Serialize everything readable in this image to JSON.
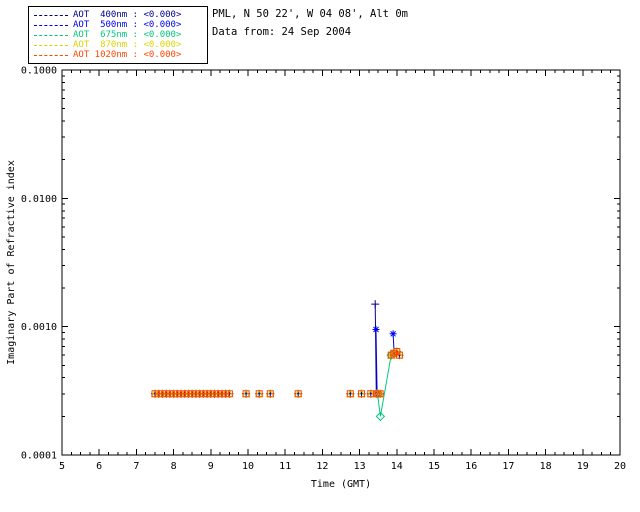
{
  "header": {
    "site": "PML, N 50 22', W 04 08', Alt 0m",
    "date": "Data from: 24 Sep 2004"
  },
  "legend": {
    "entries": [
      {
        "label": "AOT  400nm : <0.000>",
        "color": "#00008B"
      },
      {
        "label": "AOT  500nm : <0.000>",
        "color": "#0000EE"
      },
      {
        "label": "AOT  675nm : <0.000>",
        "color": "#00C87D"
      },
      {
        "label": "AOT  870nm : <0.000>",
        "color": "#DCD400"
      },
      {
        "label": "AOT 1020nm : <0.000>",
        "color": "#FF4500"
      }
    ]
  },
  "chart_data": {
    "type": "line",
    "title": "",
    "xlabel": "Time (GMT)",
    "ylabel": "Imaginary Part of Refractive index",
    "xlim": [
      5,
      20
    ],
    "ylim": [
      0.0001,
      0.1
    ],
    "yscale": "log",
    "grid": false,
    "legend_position": "top-left",
    "xticks": [
      5,
      6,
      7,
      8,
      9,
      10,
      11,
      12,
      13,
      14,
      15,
      16,
      17,
      18,
      19,
      20
    ],
    "yticks": [
      0.0001,
      0.001,
      0.01,
      0.1
    ],
    "ytick_labels": [
      "0.0001",
      "0.0010",
      "0.0100",
      "0.1000"
    ],
    "baseline": {
      "y": 0.0003,
      "x": [
        7.5,
        7.6,
        7.7,
        7.8,
        7.9,
        8.0,
        8.1,
        8.2,
        8.3,
        8.4,
        8.5,
        8.6,
        8.7,
        8.8,
        8.9,
        9.0,
        9.1,
        9.2,
        9.3,
        9.4,
        9.5,
        9.95,
        10.3,
        10.6,
        11.35,
        12.75,
        13.05,
        13.3,
        13.45,
        13.5,
        13.55
      ]
    },
    "cluster2": {
      "x": [
        13.85,
        13.92,
        14.0,
        14.07
      ],
      "y": [
        0.0006,
        0.00062,
        0.00064,
        0.0006
      ]
    },
    "series": [
      {
        "name": "AOT 400nm",
        "color": "#00008B",
        "marker": "plus",
        "baseline": true,
        "cluster2": true,
        "points": [
          [
            13.42,
            0.0015
          ]
        ]
      },
      {
        "name": "AOT 500nm",
        "color": "#0000EE",
        "marker": "asterisk",
        "baseline": false,
        "cluster2": false,
        "points": [
          [
            13.44,
            0.00095
          ],
          [
            13.47,
            0.0003
          ],
          [
            13.9,
            0.00088
          ],
          [
            13.93,
            0.00062
          ]
        ]
      },
      {
        "name": "AOT 675nm",
        "color": "#00C87D",
        "marker": "diamond",
        "baseline": false,
        "cluster2": false,
        "gap": 0.35,
        "points": [
          [
            13.48,
            0.0003
          ],
          [
            13.56,
            0.0002
          ],
          [
            13.85,
            0.0006
          ]
        ]
      },
      {
        "name": "AOT 870nm",
        "color": "#DCD400",
        "marker": "triangle",
        "baseline": true,
        "cluster2": true,
        "points": []
      },
      {
        "name": "AOT 1020nm",
        "color": "#FF4500",
        "marker": "square",
        "baseline": true,
        "cluster2": true,
        "points": []
      }
    ]
  }
}
